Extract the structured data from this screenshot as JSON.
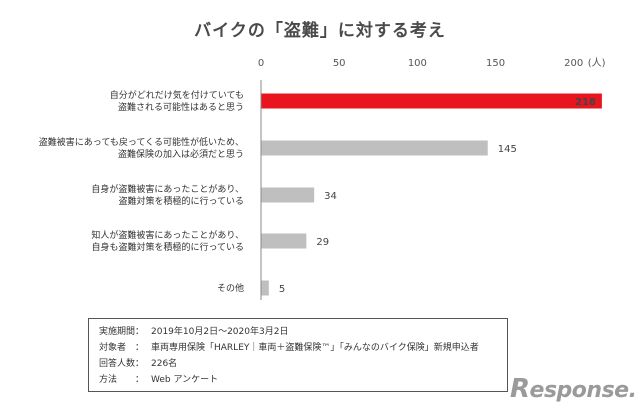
{
  "chart_data": {
    "type": "bar",
    "orientation": "horizontal",
    "title": "バイクの「盗難」に対する考え",
    "unit": "(人)",
    "xlim": [
      0,
      220
    ],
    "ticks": [
      0,
      50,
      100,
      150,
      200
    ],
    "grid": false,
    "categories": [
      [
        "自分がどれだけ気を付けていても",
        "盗難される可能性はあると思う"
      ],
      [
        "盗難被害にあっても戻ってくる可能性が低いため、",
        "盗難保険の加入は必須だと思う"
      ],
      [
        "自身が盗難被害にあったことがあり、",
        "盗難対策を積極的に行っている"
      ],
      [
        "知人が盗難被害にあったことがあり、",
        "自身も盗難対策を積極的に行っている"
      ],
      [
        "その他"
      ]
    ],
    "values": [
      218,
      145,
      34,
      29,
      5
    ],
    "colors": [
      "#e8141e",
      "#bfbfbf",
      "#bfbfbf",
      "#bfbfbf",
      "#bfbfbf"
    ]
  },
  "info": [
    {
      "key": "実施期間：",
      "value": "2019年10月2日～2020年3月2日"
    },
    {
      "key": "対象者　：",
      "value": "車両専用保険「HARLEY｜車両＋盗難保険™」「みんなのバイク保険」新規申込者"
    },
    {
      "key": "回答人数：",
      "value": "226名"
    },
    {
      "key": "方法　　：",
      "value": "Web アンケート"
    }
  ],
  "logo": {
    "mark": "R",
    "text": "esponse."
  }
}
